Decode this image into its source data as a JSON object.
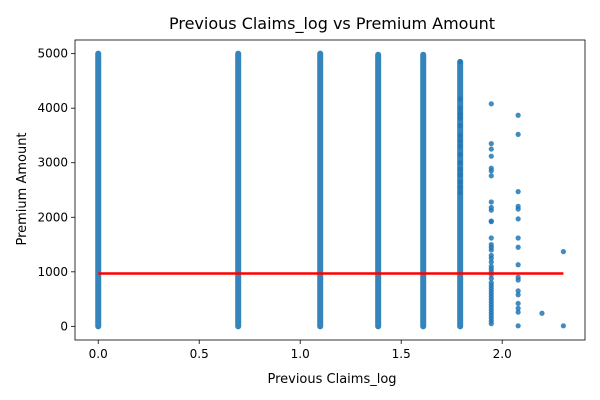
{
  "chart_data": {
    "type": "scatter",
    "title": "Previous Claims_log vs Premium Amount",
    "xlabel": "Previous Claims_log",
    "ylabel": "Premium Amount",
    "xlim": [
      -0.115,
      2.41
    ],
    "ylim": [
      -250,
      5250
    ],
    "xticks": [
      0.0,
      0.5,
      1.0,
      1.5,
      2.0
    ],
    "xtick_labels": [
      "0.0",
      "0.5",
      "1.0",
      "1.5",
      "2.0"
    ],
    "yticks": [
      0,
      1000,
      2000,
      3000,
      4000,
      5000
    ],
    "ytick_labels": [
      "0",
      "1000",
      "2000",
      "3000",
      "4000",
      "5000"
    ],
    "grid": false,
    "point_color": "#1f77b4",
    "line_color": "#ff0000",
    "dense_columns": [
      {
        "x": 0.0,
        "ymin": 0,
        "ymax": 5000
      },
      {
        "x": 0.693,
        "ymin": 0,
        "ymax": 5000
      },
      {
        "x": 1.099,
        "ymin": 0,
        "ymax": 5000
      },
      {
        "x": 1.386,
        "ymin": 0,
        "ymax": 4980
      },
      {
        "x": 1.609,
        "ymin": 0,
        "ymax": 4980
      },
      {
        "x": 1.792,
        "ymin": 0,
        "ymax": 4850
      }
    ],
    "points": [
      {
        "x": 1.792,
        "y": 4850
      },
      {
        "x": 1.792,
        "y": 4170
      },
      {
        "x": 1.792,
        "y": 4000
      },
      {
        "x": 1.792,
        "y": 3900
      },
      {
        "x": 1.792,
        "y": 3820
      },
      {
        "x": 1.792,
        "y": 3680
      },
      {
        "x": 1.792,
        "y": 3500
      },
      {
        "x": 1.792,
        "y": 3400
      },
      {
        "x": 1.792,
        "y": 3300
      },
      {
        "x": 1.792,
        "y": 3150
      },
      {
        "x": 1.792,
        "y": 3000
      },
      {
        "x": 1.792,
        "y": 2880
      },
      {
        "x": 1.792,
        "y": 2780
      },
      {
        "x": 1.792,
        "y": 2650
      },
      {
        "x": 1.792,
        "y": 2550
      },
      {
        "x": 1.792,
        "y": 2450
      },
      {
        "x": 1.946,
        "y": 4080
      },
      {
        "x": 1.946,
        "y": 3350
      },
      {
        "x": 1.946,
        "y": 3250
      },
      {
        "x": 1.946,
        "y": 3120
      },
      {
        "x": 1.946,
        "y": 2900
      },
      {
        "x": 1.946,
        "y": 2850
      },
      {
        "x": 1.946,
        "y": 2760
      },
      {
        "x": 1.946,
        "y": 2280
      },
      {
        "x": 1.946,
        "y": 2180
      },
      {
        "x": 1.946,
        "y": 2130
      },
      {
        "x": 1.946,
        "y": 1930
      },
      {
        "x": 1.946,
        "y": 1920
      },
      {
        "x": 1.946,
        "y": 1620
      },
      {
        "x": 1.946,
        "y": 1500
      },
      {
        "x": 1.946,
        "y": 1450
      },
      {
        "x": 1.946,
        "y": 1400
      },
      {
        "x": 1.946,
        "y": 1300
      },
      {
        "x": 1.946,
        "y": 1250
      },
      {
        "x": 1.946,
        "y": 1180
      },
      {
        "x": 1.946,
        "y": 1100
      },
      {
        "x": 1.946,
        "y": 1050
      },
      {
        "x": 1.946,
        "y": 1000
      },
      {
        "x": 1.946,
        "y": 950
      },
      {
        "x": 1.946,
        "y": 880
      },
      {
        "x": 1.946,
        "y": 800
      },
      {
        "x": 1.946,
        "y": 750
      },
      {
        "x": 1.946,
        "y": 700
      },
      {
        "x": 1.946,
        "y": 650
      },
      {
        "x": 1.946,
        "y": 600
      },
      {
        "x": 1.946,
        "y": 550
      },
      {
        "x": 1.946,
        "y": 500
      },
      {
        "x": 1.946,
        "y": 450
      },
      {
        "x": 1.946,
        "y": 400
      },
      {
        "x": 1.946,
        "y": 350
      },
      {
        "x": 1.946,
        "y": 300
      },
      {
        "x": 1.946,
        "y": 250
      },
      {
        "x": 1.946,
        "y": 200
      },
      {
        "x": 1.946,
        "y": 150
      },
      {
        "x": 1.946,
        "y": 100
      },
      {
        "x": 1.946,
        "y": 50
      },
      {
        "x": 2.079,
        "y": 3870
      },
      {
        "x": 2.079,
        "y": 3520
      },
      {
        "x": 2.079,
        "y": 2470
      },
      {
        "x": 2.079,
        "y": 2200
      },
      {
        "x": 2.079,
        "y": 2150
      },
      {
        "x": 2.079,
        "y": 1970
      },
      {
        "x": 2.079,
        "y": 1620
      },
      {
        "x": 2.079,
        "y": 1450
      },
      {
        "x": 2.079,
        "y": 1130
      },
      {
        "x": 2.079,
        "y": 900
      },
      {
        "x": 2.079,
        "y": 850
      },
      {
        "x": 2.079,
        "y": 650
      },
      {
        "x": 2.079,
        "y": 580
      },
      {
        "x": 2.079,
        "y": 420
      },
      {
        "x": 2.079,
        "y": 330
      },
      {
        "x": 2.079,
        "y": 260
      },
      {
        "x": 2.079,
        "y": 10
      },
      {
        "x": 2.197,
        "y": 240
      },
      {
        "x": 2.303,
        "y": 1370
      },
      {
        "x": 2.303,
        "y": 10
      }
    ],
    "regression_line": {
      "x": [
        0.0,
        2.303
      ],
      "y": [
        970,
        970
      ]
    }
  }
}
